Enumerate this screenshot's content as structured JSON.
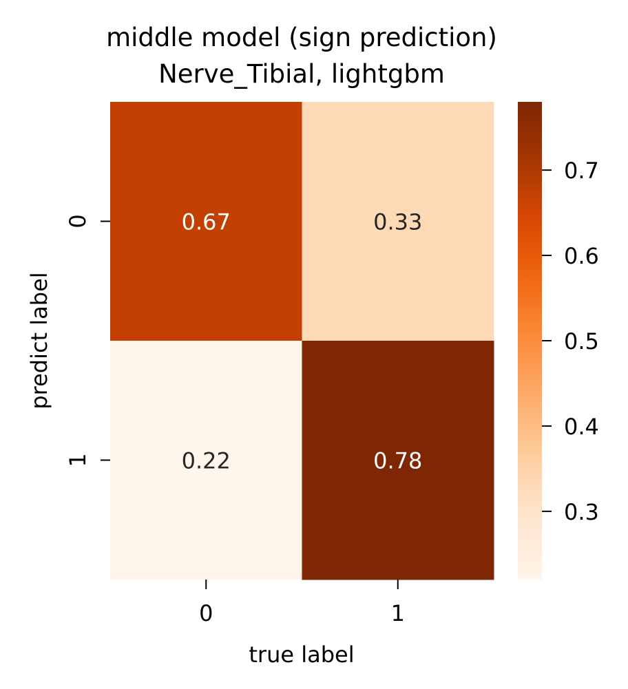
{
  "chart_data": {
    "type": "heatmap",
    "title": "middle model (sign prediction)",
    "subtitle": "Nerve_Tibial, lightgbm",
    "xlabel": "true label",
    "ylabel": "predict label",
    "x_categories": [
      "0",
      "1"
    ],
    "y_categories": [
      "0",
      "1"
    ],
    "values": [
      [
        0.67,
        0.33
      ],
      [
        0.22,
        0.78
      ]
    ],
    "annotations": [
      [
        "0.67",
        "0.33"
      ],
      [
        "0.22",
        "0.78"
      ]
    ],
    "colormap": "Oranges",
    "colorbar": {
      "min": 0.22,
      "max": 0.78,
      "ticks": [
        0.3,
        0.4,
        0.5,
        0.6,
        0.7
      ],
      "tick_labels": [
        "0.3",
        "0.4",
        "0.5",
        "0.6",
        "0.7"
      ]
    },
    "text_colors": {
      "dark": "#262626",
      "light": "#ffffff"
    }
  }
}
